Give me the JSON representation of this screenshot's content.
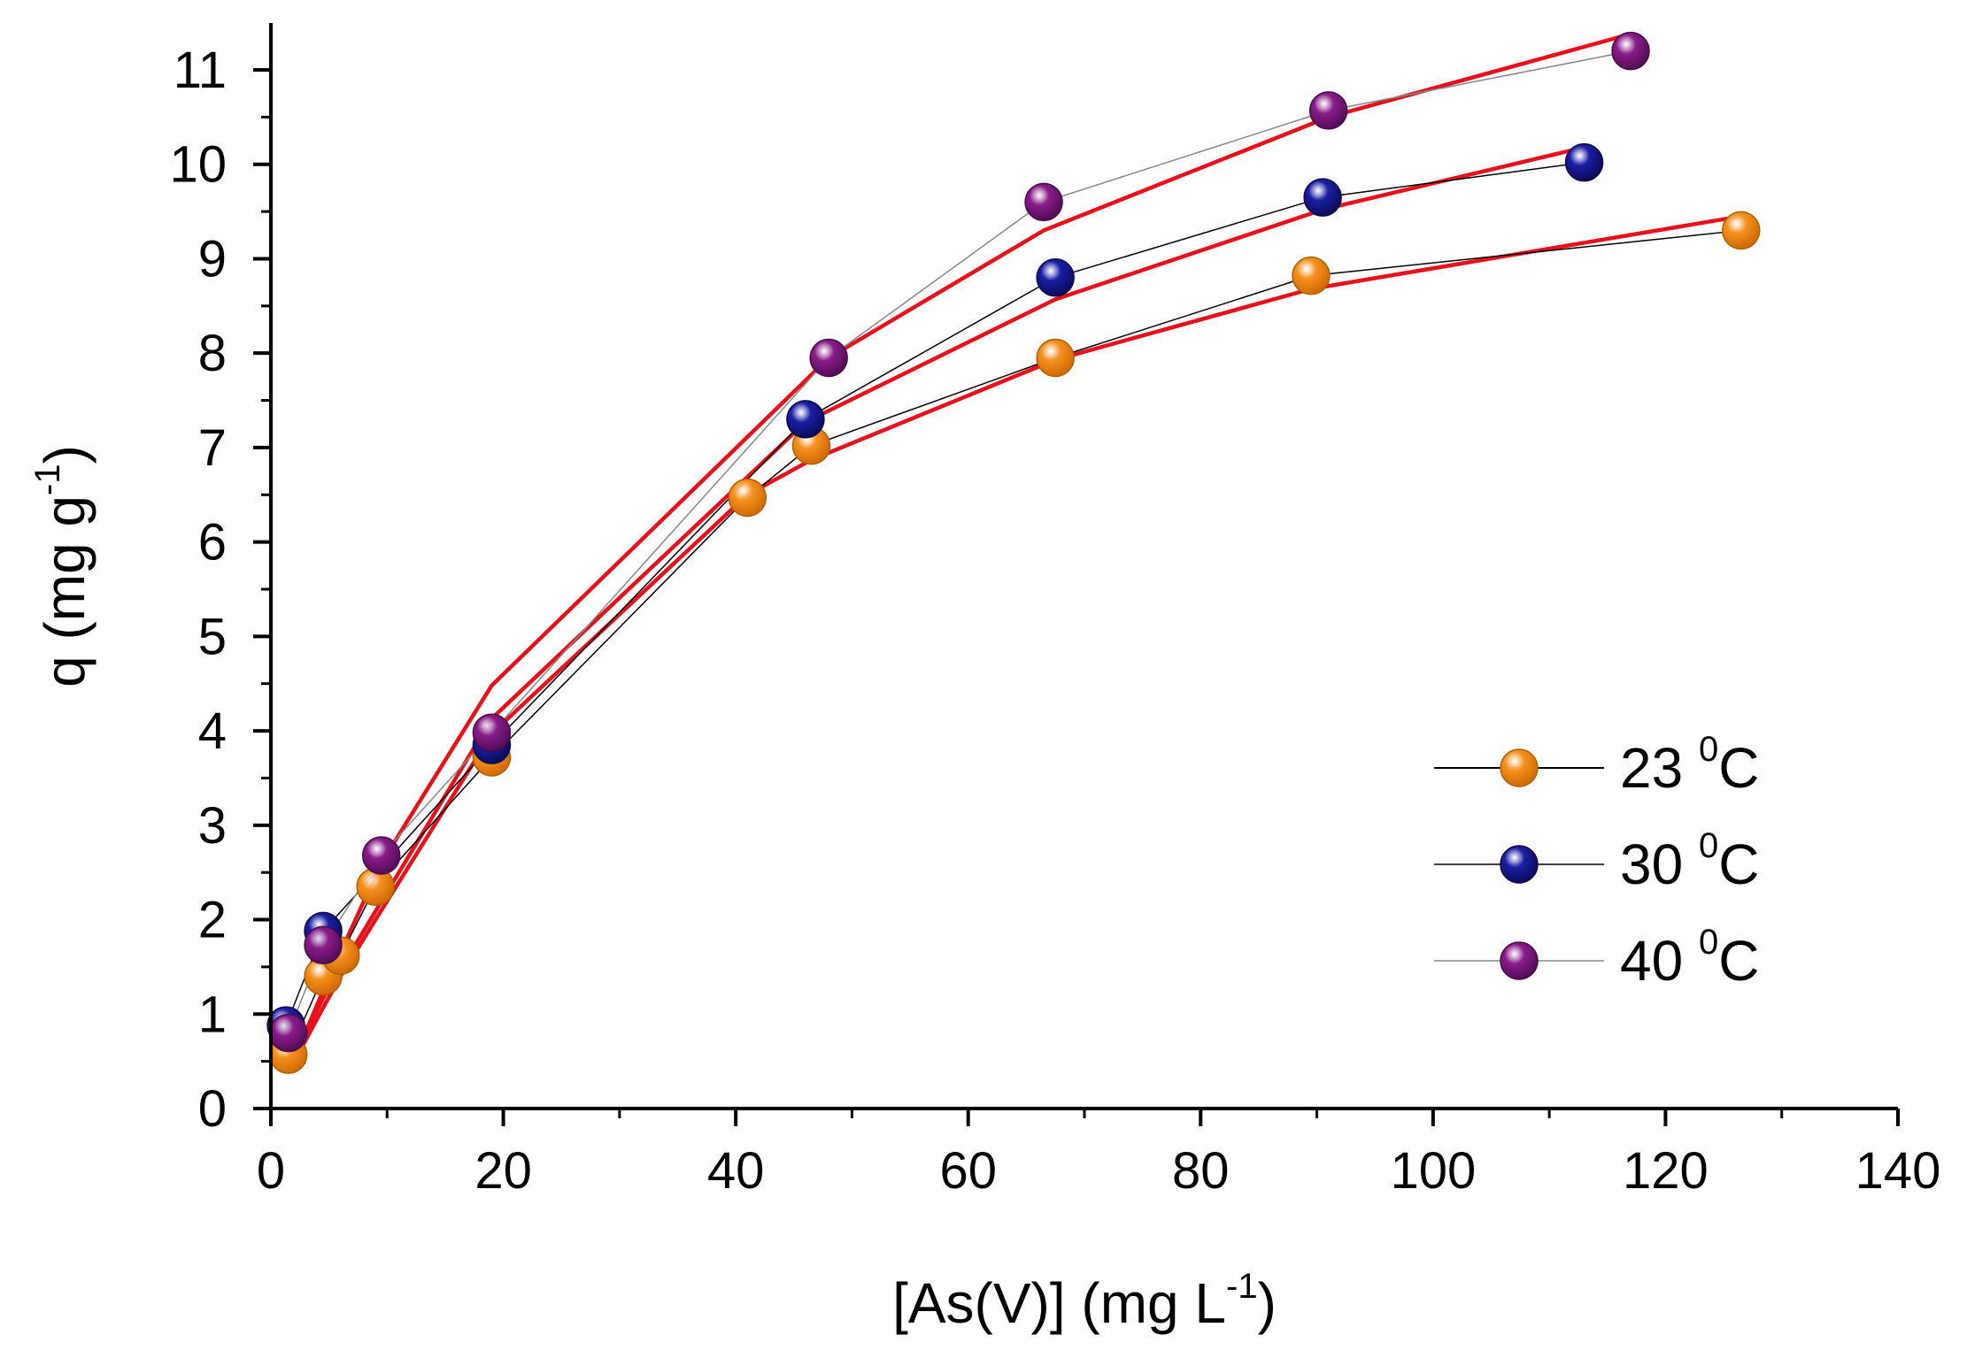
{
  "chart_data": {
    "type": "scatter",
    "xlabel": {
      "main": "[As(V)] (mg L",
      "sup": "-1",
      "close": ")"
    },
    "ylabel": {
      "main": "q (mg g",
      "sup": "-1",
      "close": ")"
    },
    "xlim": [
      0,
      140
    ],
    "ylim": [
      0,
      11.4
    ],
    "x_ticks": [
      "0",
      "20",
      "40",
      "60",
      "80",
      "100",
      "120",
      "140"
    ],
    "y_ticks": [
      "0",
      "1",
      "2",
      "3",
      "4",
      "5",
      "6",
      "7",
      "8",
      "9",
      "10",
      "11"
    ],
    "grid": false,
    "legend_position": "right-center",
    "fit_color": "#e8101a",
    "series": [
      {
        "name": "23 ⁰C",
        "name_main": "23 ",
        "name_sup": "0",
        "name_unit": "C",
        "color": "#f5901e",
        "x": [
          1.5,
          4.5,
          6,
          9,
          19,
          41,
          46.5,
          67.5,
          89.5,
          126.5
        ],
        "y": [
          0.57,
          1.4,
          1.62,
          2.35,
          3.72,
          6.47,
          7.02,
          7.95,
          8.82,
          9.3
        ],
        "fit": {
          "x": [
            1.5,
            4.5,
            6,
            9,
            19,
            41,
            46.5,
            67.5,
            89.5,
            126.5
          ],
          "y": [
            0.38,
            1.07,
            1.4,
            2.0,
            3.97,
            6.5,
            6.87,
            7.93,
            8.68,
            9.45
          ]
        }
      },
      {
        "name": "30 ⁰C",
        "name_main": "30 ",
        "name_sup": "0",
        "name_unit": "C",
        "color": "#1c1ea5",
        "x": [
          1.3,
          4.5,
          19,
          46,
          67.5,
          90.5,
          113
        ],
        "y": [
          0.88,
          1.88,
          3.85,
          7.3,
          8.8,
          9.65,
          10.02
        ],
        "fit": {
          "x": [
            1.3,
            4.5,
            19,
            46,
            67.5,
            90.5,
            113
          ],
          "y": [
            0.38,
            1.17,
            4.13,
            7.27,
            8.57,
            9.52,
            10.18
          ]
        }
      },
      {
        "name": "40 ⁰C",
        "name_main": "40 ",
        "name_sup": "0",
        "name_unit": "C",
        "color": "#8a1c8a",
        "x": [
          1.5,
          4.5,
          9.5,
          19,
          48,
          66.5,
          91,
          117
        ],
        "y": [
          0.8,
          1.73,
          2.68,
          3.98,
          7.95,
          9.6,
          10.57,
          11.2
        ],
        "fit": {
          "x": [
            1.5,
            4.5,
            9.5,
            19,
            48,
            66.5,
            91,
            117
          ],
          "y": [
            0.38,
            1.25,
            2.6,
            4.48,
            7.95,
            9.3,
            10.5,
            11.38
          ]
        }
      }
    ]
  }
}
